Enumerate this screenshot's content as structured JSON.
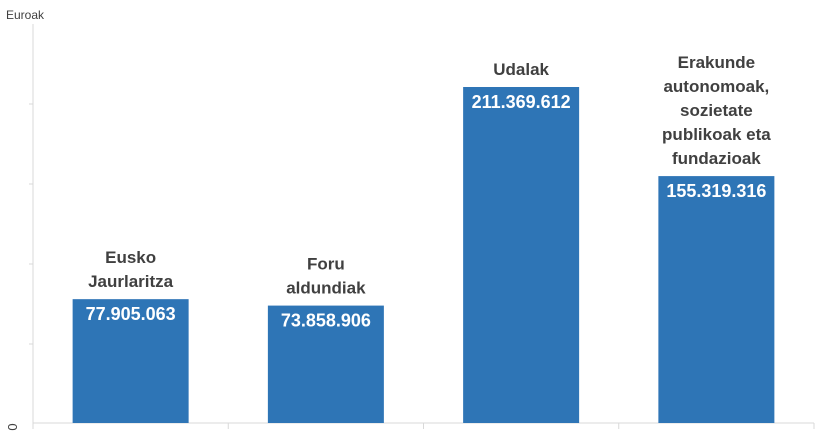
{
  "chart_data": {
    "type": "bar",
    "ylabel": "Euroak",
    "ylim": [
      0,
      240000000
    ],
    "y_tick_labels": [
      "0"
    ],
    "grid": false,
    "bar_color": "#2E75B6",
    "categories": [
      {
        "lines": [
          "Eusko",
          "Jaurlaritza"
        ]
      },
      {
        "lines": [
          "Foru",
          "aldundiak"
        ]
      },
      {
        "lines": [
          "Udalak"
        ]
      },
      {
        "lines": [
          "Erakunde",
          "autonomoak,",
          "sozietate",
          "publikoak eta",
          "fundazioak"
        ]
      }
    ],
    "values": [
      77905063,
      73858906,
      211369612,
      155319316
    ],
    "value_labels": [
      "77.905.063",
      "73.858.906",
      "211.369.612",
      "155.319.316"
    ]
  }
}
